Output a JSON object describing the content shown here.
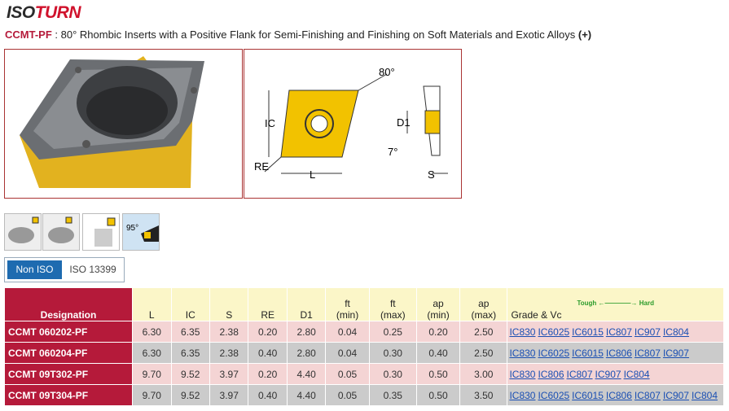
{
  "header": {
    "logo": [
      "ISO",
      "TURN"
    ],
    "code": "CCMT-PF",
    "description": " : 80° Rhombic Inserts with a Positive Flank for Semi-Finishing and Finishing on Soft Materials and Exotic Alloys",
    "plus": "(+)"
  },
  "diagram": {
    "angle": "80°",
    "ic": "IC",
    "re": "RE",
    "l": "L",
    "d1": "D1",
    "flank_angle": "7°",
    "s": "S"
  },
  "icons": {
    "angle": "95°"
  },
  "tabs": [
    "Non ISO",
    "ISO 13399"
  ],
  "table": {
    "columns": [
      [
        "Designation"
      ],
      [
        "L"
      ],
      [
        "IC"
      ],
      [
        "S"
      ],
      [
        "RE"
      ],
      [
        "D1"
      ],
      [
        "ft",
        "(min)"
      ],
      [
        "ft",
        "(max)"
      ],
      [
        "ap",
        "(min)"
      ],
      [
        "ap",
        "(max)"
      ]
    ],
    "grade_scale": {
      "tough": "Tough",
      "hard": "Hard"
    },
    "grade_header": "Grade & Vc",
    "rows": [
      {
        "designation": "CCMT 060202-PF",
        "values": [
          "6.30",
          "6.35",
          "2.38",
          "0.20",
          "2.80",
          "0.04",
          "0.25",
          "0.20",
          "2.50"
        ],
        "grades": [
          "IC830",
          "IC6025",
          "IC6015",
          "IC807",
          "IC907",
          "IC804"
        ]
      },
      {
        "designation": "CCMT 060204-PF",
        "values": [
          "6.30",
          "6.35",
          "2.38",
          "0.40",
          "2.80",
          "0.04",
          "0.30",
          "0.40",
          "2.50"
        ],
        "grades": [
          "IC830",
          "IC6025",
          "IC6015",
          "IC806",
          "IC807",
          "IC907"
        ]
      },
      {
        "designation": "CCMT 09T302-PF",
        "values": [
          "9.70",
          "9.52",
          "3.97",
          "0.20",
          "4.40",
          "0.05",
          "0.30",
          "0.50",
          "3.00"
        ],
        "grades": [
          "IC830",
          "IC806",
          "IC807",
          "IC907",
          "IC804"
        ]
      },
      {
        "designation": "CCMT 09T304-PF",
        "values": [
          "9.70",
          "9.52",
          "3.97",
          "0.40",
          "4.40",
          "0.05",
          "0.35",
          "0.50",
          "3.50"
        ],
        "grades": [
          "IC830",
          "IC6025",
          "IC6015",
          "IC806",
          "IC807",
          "IC907",
          "IC804"
        ]
      }
    ]
  }
}
